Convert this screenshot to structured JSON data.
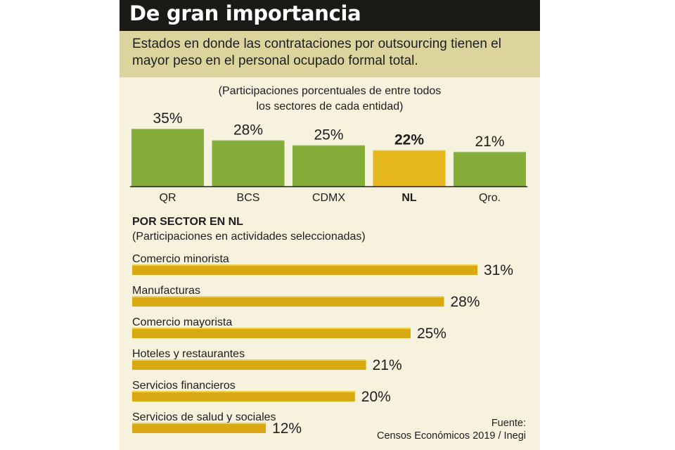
{
  "header": {
    "title": "De gran importancia",
    "subtitle": "Estados en donde las contrataciones por outsourcing tienen el mayor peso en el personal ocupado formal total."
  },
  "states_section": {
    "note_line1": "(Participaciones porcentuales de entre todos",
    "note_line2": "los sectores de cada entidad)"
  },
  "sector_section": {
    "heading": "POR SECTOR EN NL",
    "subheading": "(Participaciones en actividades seleccionadas)"
  },
  "source": {
    "line1": "Fuente:",
    "line2": "Censos Económicos 2019 / Inegi"
  },
  "colors": {
    "green": "#85ad3a",
    "highlight": "#e6b81e",
    "sector_bar": "#d8a910",
    "title_bg": "#1c1a17",
    "subtitle_bg": "#dcd49d",
    "panel_bg": "#f6f2dd"
  },
  "chart_data": [
    {
      "type": "bar",
      "categories": [
        "QR",
        "BCS",
        "CDMX",
        "NL",
        "Qro."
      ],
      "values": [
        35,
        28,
        25,
        22,
        21
      ],
      "value_labels": [
        "35%",
        "28%",
        "25%",
        "22%",
        "21%"
      ],
      "highlight": "NL",
      "title": "",
      "xlabel": "",
      "ylabel": ""
    },
    {
      "type": "bar",
      "orientation": "horizontal",
      "categories": [
        "Comercio minorista",
        "Manufacturas",
        "Comercio mayorista",
        "Hoteles y restaurantes",
        "Servicios financieros",
        "Servicios de salud y sociales"
      ],
      "values": [
        31,
        28,
        25,
        21,
        20,
        12
      ],
      "value_labels": [
        "31%",
        "28%",
        "25%",
        "21%",
        "20%",
        "12%"
      ],
      "title": "POR SECTOR EN NL"
    }
  ]
}
